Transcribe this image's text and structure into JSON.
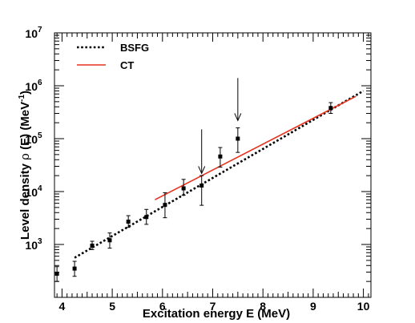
{
  "chart_data": {
    "type": "scatter",
    "title": "",
    "xlabel": "Excitation energy E (MeV)",
    "ylabel_prefix": "Level density ",
    "ylabel_rho": "ρ",
    "ylabel_mid": " (E) (MeV",
    "ylabel_exp": "-1",
    "ylabel_suffix": ")",
    "xlim": [
      3.85,
      10.15
    ],
    "ylim": [
      100,
      10000000
    ],
    "yscale": "log",
    "x_ticks": [
      4,
      5,
      6,
      7,
      8,
      9,
      10
    ],
    "x_tick_labels": [
      "4",
      "5",
      "6",
      "7",
      "8",
      "9",
      "10"
    ],
    "y_ticks": [
      1000,
      10000,
      100000,
      1000000,
      10000000
    ],
    "y_tick_base": "10",
    "y_tick_exponents": [
      "3",
      "4",
      "5",
      "6",
      "7"
    ],
    "legend": {
      "placement": "top-left",
      "entries": [
        {
          "label": "BSFG",
          "style": "dotted",
          "color": "#000000"
        },
        {
          "label": "CT",
          "style": "solid",
          "color": "#e8321e"
        }
      ]
    },
    "series": [
      {
        "name": "BSFG",
        "kind": "line",
        "style": "dotted",
        "color": "#000000",
        "x": [
          4.25,
          10.0
        ],
        "y": [
          560,
          800000
        ]
      },
      {
        "name": "CT",
        "kind": "line",
        "style": "solid",
        "color": "#e8321e",
        "x": [
          5.85,
          9.85
        ],
        "y": [
          7000,
          630000
        ]
      },
      {
        "kind": "points",
        "color": "#000000",
        "x": [
          3.9,
          4.25,
          4.6,
          4.95,
          5.32,
          5.68,
          6.05,
          6.42,
          6.78,
          7.15,
          7.5,
          9.35
        ],
        "y": [
          280,
          350,
          950,
          1200,
          2700,
          3300,
          5600,
          11500,
          13000,
          46000,
          100000,
          380000
        ],
        "y_low": [
          200,
          250,
          800,
          850,
          2100,
          2400,
          3200,
          8500,
          5500,
          29000,
          55000,
          300000
        ],
        "y_high": [
          380,
          480,
          1150,
          1650,
          3500,
          4600,
          9500,
          17000,
          20000,
          68000,
          160000,
          480000
        ]
      }
    ],
    "annotations": [
      {
        "type": "arrow",
        "x": 6.78,
        "y_from": 150000,
        "y_to": 22000
      },
      {
        "type": "arrow",
        "x": 7.5,
        "y_from": 1400000,
        "y_to": 220000
      }
    ]
  }
}
